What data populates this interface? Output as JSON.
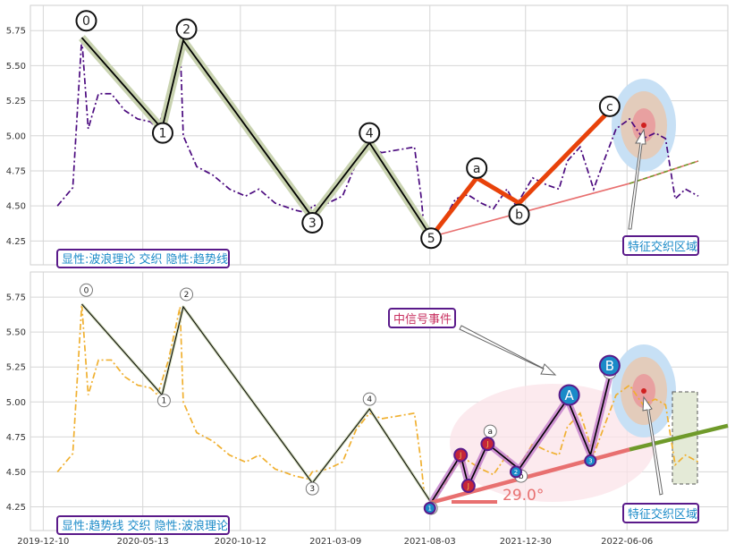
{
  "chart_data": [
    {
      "type": "line",
      "panel": "top",
      "title": "",
      "ylim": [
        4.08,
        5.93
      ],
      "yticks": [
        4.25,
        4.5,
        4.75,
        5.0,
        5.25,
        5.5,
        5.75
      ],
      "grid": true,
      "legend_text": "显性:波浪理论 交织 隐性:趋势线",
      "series": [
        {
          "role": "price",
          "color": "#4b0a7f",
          "x": [
            "2020-01-01",
            "2020-01-25",
            "2020-02-08",
            "2020-02-18",
            "2020-03-05",
            "2020-03-25",
            "2020-04-15",
            "2020-05-05",
            "2020-05-25",
            "2020-06-05",
            "2020-06-22",
            "2020-07-10",
            "2020-07-15",
            "2020-08-05",
            "2020-08-30",
            "2020-09-25",
            "2020-10-20",
            "2020-11-10",
            "2020-12-05",
            "2021-01-05",
            "2021-01-25",
            "2021-02-01",
            "2021-02-25",
            "2021-03-20",
            "2021-04-10",
            "2021-05-01",
            "2021-05-20",
            "2021-06-15",
            "2021-07-10",
            "2021-07-20",
            "2021-07-25",
            "2021-08-05",
            "2021-08-25",
            "2021-09-12",
            "2021-10-01",
            "2021-10-22",
            "2021-11-10",
            "2021-12-01",
            "2021-12-15",
            "2022-01-10",
            "2022-02-01",
            "2022-02-20",
            "2022-03-05",
            "2022-03-25",
            "2022-04-15",
            "2022-05-01",
            "2022-05-20",
            "2022-06-10",
            "2022-07-01",
            "2022-07-20",
            "2022-08-05",
            "2022-08-20",
            "2022-09-05",
            "2022-09-25"
          ],
          "y": [
            4.5,
            4.63,
            5.7,
            5.05,
            5.3,
            5.3,
            5.18,
            5.12,
            5.1,
            5.05,
            5.3,
            5.68,
            5.0,
            4.78,
            4.72,
            4.62,
            4.57,
            4.62,
            4.52,
            4.47,
            4.45,
            4.5,
            4.52,
            4.57,
            4.8,
            4.92,
            4.88,
            4.9,
            4.92,
            4.58,
            4.35,
            4.28,
            4.4,
            4.55,
            4.58,
            4.52,
            4.48,
            4.62,
            4.5,
            4.7,
            4.65,
            4.62,
            4.82,
            4.92,
            4.62,
            4.82,
            5.05,
            5.12,
            4.98,
            5.02,
            4.98,
            4.55,
            4.62,
            4.57
          ]
        },
        {
          "role": "wave",
          "color": "#000000",
          "x": [
            "2020-02-08",
            "2020-06-12",
            "2020-07-15",
            "2021-02-01",
            "2021-05-01",
            "2021-08-05"
          ],
          "y": [
            5.7,
            5.05,
            5.68,
            4.42,
            4.95,
            4.28
          ]
        },
        {
          "role": "wave-abc",
          "color": "#e8420a",
          "x": [
            "2021-08-05",
            "2021-10-15",
            "2021-12-20",
            "2022-05-10"
          ],
          "y": [
            4.28,
            4.7,
            4.52,
            5.18
          ]
        },
        {
          "role": "trend",
          "color": "#e87070",
          "x": [
            "2021-08-05",
            "2022-06-10",
            "2022-09-25"
          ],
          "y": [
            4.28,
            4.66,
            4.82
          ]
        }
      ],
      "wave_labels": [
        {
          "text": "0",
          "x": "2020-02-15",
          "y": 5.82
        },
        {
          "text": "1",
          "x": "2020-06-13",
          "y": 5.02
        },
        {
          "text": "2",
          "x": "2020-07-20",
          "y": 5.76
        },
        {
          "text": "3",
          "x": "2021-02-01",
          "y": 4.38
        },
        {
          "text": "4",
          "x": "2021-05-01",
          "y": 5.02
        },
        {
          "text": "5",
          "x": "2021-08-05",
          "y": 4.27
        },
        {
          "text": "a",
          "x": "2021-10-15",
          "y": 4.77
        },
        {
          "text": "b",
          "x": "2021-12-20",
          "y": 4.44
        },
        {
          "text": "c",
          "x": "2022-05-10",
          "y": 5.21
        }
      ],
      "zone": {
        "label": "特征交织区域",
        "x": "2022-06-10",
        "y": 5.08,
        "label_x": "2022-07-01",
        "label_y": 4.18
      }
    },
    {
      "type": "line",
      "panel": "bottom",
      "title": "",
      "ylim": [
        4.08,
        5.93
      ],
      "yticks": [
        4.25,
        4.5,
        4.75,
        5.0,
        5.25,
        5.5,
        5.75
      ],
      "xlim": [
        "2019-11-20",
        "2022-11-10"
      ],
      "xticks": [
        "2019-12-10",
        "2020-05-13",
        "2020-10-12",
        "2021-03-09",
        "2021-08-03",
        "2021-12-30",
        "2022-06-06"
      ],
      "grid": true,
      "legend_text": "显性:趋势线 交织 隐性:波浪理论",
      "series": [
        {
          "role": "price",
          "color": "#f0b030",
          "x": [
            "2020-01-01",
            "2020-01-25",
            "2020-02-08",
            "2020-02-18",
            "2020-03-05",
            "2020-03-25",
            "2020-04-15",
            "2020-05-05",
            "2020-05-25",
            "2020-06-05",
            "2020-06-22",
            "2020-07-10",
            "2020-07-15",
            "2020-08-05",
            "2020-08-30",
            "2020-09-25",
            "2020-10-20",
            "2020-11-10",
            "2020-12-05",
            "2021-01-05",
            "2021-01-25",
            "2021-02-01",
            "2021-02-25",
            "2021-03-20",
            "2021-04-10",
            "2021-05-01",
            "2021-05-20",
            "2021-06-15",
            "2021-07-10",
            "2021-07-20",
            "2021-07-25",
            "2021-08-05",
            "2021-08-25",
            "2021-09-12",
            "2021-10-01",
            "2021-10-22",
            "2021-11-10",
            "2021-12-01",
            "2021-12-15",
            "2022-01-10",
            "2022-02-01",
            "2022-02-20",
            "2022-03-05",
            "2022-03-25",
            "2022-04-15",
            "2022-05-01",
            "2022-05-20",
            "2022-06-10",
            "2022-07-01",
            "2022-07-20",
            "2022-08-05",
            "2022-08-20",
            "2022-09-05",
            "2022-09-25"
          ],
          "y": [
            4.5,
            4.63,
            5.7,
            5.05,
            5.3,
            5.3,
            5.18,
            5.12,
            5.1,
            5.05,
            5.3,
            5.68,
            5.0,
            4.78,
            4.72,
            4.62,
            4.57,
            4.62,
            4.52,
            4.47,
            4.45,
            4.5,
            4.52,
            4.57,
            4.8,
            4.92,
            4.88,
            4.9,
            4.92,
            4.58,
            4.35,
            4.28,
            4.4,
            4.55,
            4.58,
            4.52,
            4.48,
            4.62,
            4.5,
            4.7,
            4.65,
            4.62,
            4.82,
            4.92,
            4.62,
            4.82,
            5.05,
            5.12,
            4.98,
            5.02,
            4.98,
            4.55,
            4.62,
            4.57
          ]
        },
        {
          "role": "wave",
          "color": "#000000",
          "x": [
            "2020-02-08",
            "2020-06-12",
            "2020-07-15",
            "2021-02-01",
            "2021-05-01",
            "2021-08-05"
          ],
          "y": [
            5.7,
            5.05,
            5.68,
            4.42,
            4.95,
            4.28
          ]
        },
        {
          "role": "wave-detail",
          "color": "#000000",
          "x": [
            "2021-08-05",
            "2021-09-20",
            "2021-10-02",
            "2021-11-01",
            "2021-12-20",
            "2022-03-05",
            "2022-04-10",
            "2022-05-10"
          ],
          "y": [
            4.28,
            4.62,
            4.4,
            4.7,
            4.52,
            5.02,
            4.62,
            5.18
          ]
        },
        {
          "role": "trend",
          "color": "#e87070",
          "x": [
            "2021-08-05",
            "2022-06-10"
          ],
          "y": [
            4.28,
            4.66
          ]
        },
        {
          "role": "trend-ext",
          "color": "#6f9a2a",
          "x": [
            "2022-06-10",
            "2022-11-10"
          ],
          "y": [
            4.66,
            4.83
          ]
        }
      ],
      "wave_labels": [
        {
          "text": "0",
          "x": "2020-02-15",
          "y": 5.8
        },
        {
          "text": "1",
          "x": "2020-06-15",
          "y": 5.01
        },
        {
          "text": "2",
          "x": "2020-07-20",
          "y": 5.77
        },
        {
          "text": "3",
          "x": "2021-02-01",
          "y": 4.38
        },
        {
          "text": "4",
          "x": "2021-05-01",
          "y": 5.02
        },
        {
          "text": "5",
          "x": "2021-08-05",
          "y": 4.24
        },
        {
          "text": "a",
          "x": "2021-11-05",
          "y": 4.79
        },
        {
          "text": "b",
          "x": "2021-12-23",
          "y": 4.47
        },
        {
          "text": "c",
          "x": "2022-05-10",
          "y": 5.21
        }
      ],
      "markers": [
        {
          "text": "1",
          "x": "2021-08-03",
          "y": 4.24,
          "kind": "blue"
        },
        {
          "text": "J",
          "x": "2021-09-20",
          "y": 4.62,
          "kind": "red"
        },
        {
          "text": "J",
          "x": "2021-10-02",
          "y": 4.4,
          "kind": "red"
        },
        {
          "text": "J",
          "x": "2021-11-01",
          "y": 4.7,
          "kind": "red"
        },
        {
          "text": "2",
          "x": "2021-12-15",
          "y": 4.5,
          "kind": "blue"
        },
        {
          "text": "3",
          "x": "2022-04-10",
          "y": 4.58,
          "kind": "blue"
        },
        {
          "text": "A",
          "x": "2022-03-08",
          "y": 5.05,
          "kind": "big"
        },
        {
          "text": "B",
          "x": "2022-05-10",
          "y": 5.26,
          "kind": "big"
        }
      ],
      "angle_label": "29.0°",
      "event_label": "中信号事件",
      "zone": {
        "label": "特征交织区域",
        "x": "2022-06-10",
        "y": 4.95,
        "label_x": "2022-07-01",
        "label_y": 4.2
      }
    }
  ]
}
